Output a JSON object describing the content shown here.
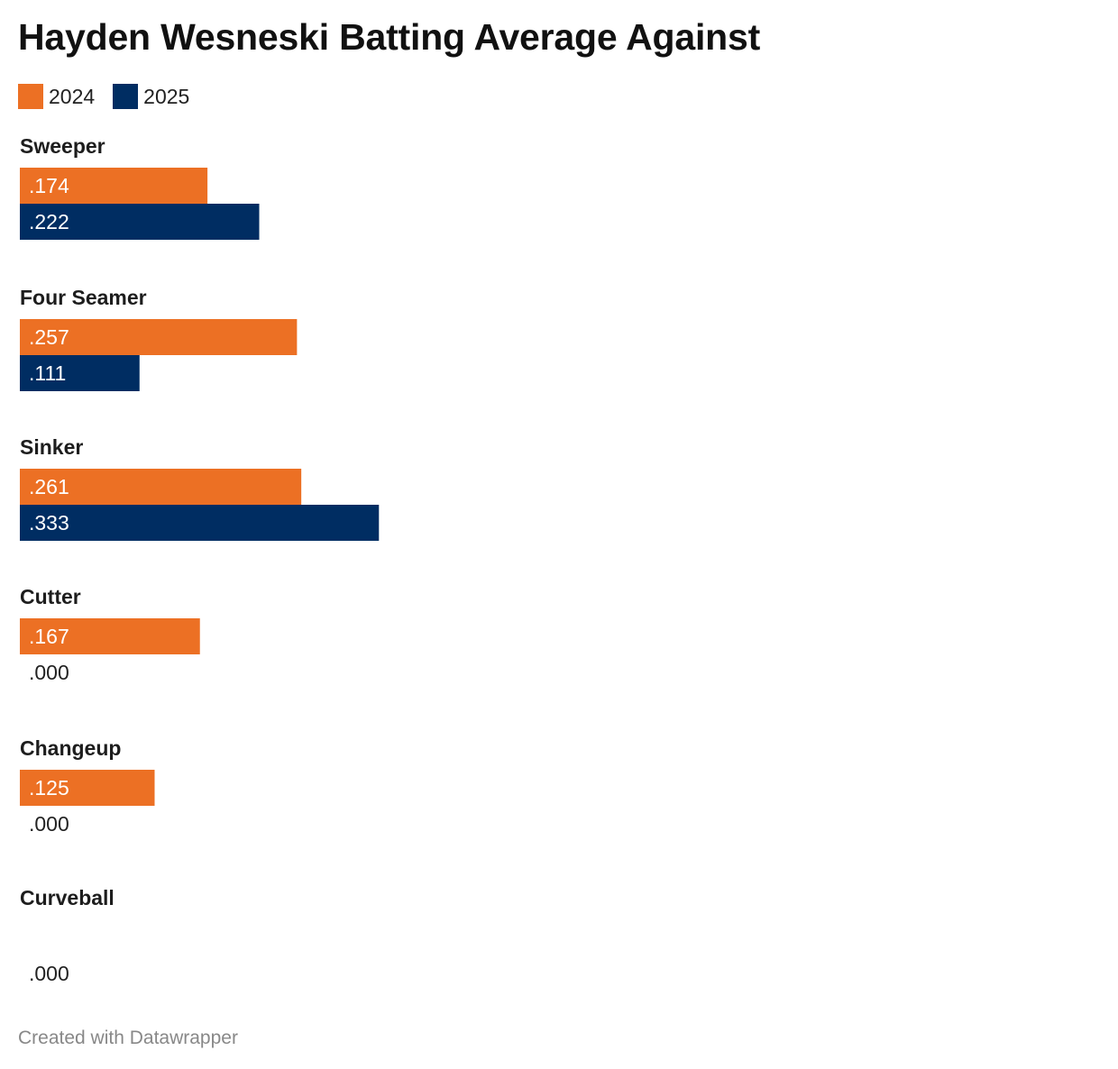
{
  "title": "Hayden Wesneski Batting Average Against",
  "credit": "Created with Datawrapper",
  "colors": {
    "series_2024": "#ec7024",
    "series_2025": "#002d62",
    "label_on_bar": "#ffffff",
    "label_off_bar": "#222222"
  },
  "legend": [
    {
      "name": "2024",
      "color": "#ec7024"
    },
    {
      "name": "2025",
      "color": "#002d62"
    }
  ],
  "chart_data": {
    "type": "bar",
    "orientation": "horizontal",
    "categories": [
      "Sweeper",
      "Four Seamer",
      "Sinker",
      "Cutter",
      "Changeup",
      "Curveball"
    ],
    "series": [
      {
        "name": "2024",
        "values": [
          0.174,
          0.257,
          0.261,
          0.167,
          0.125,
          null
        ],
        "labels": [
          ".174",
          ".257",
          ".261",
          ".167",
          ".125",
          ""
        ]
      },
      {
        "name": "2025",
        "values": [
          0.222,
          0.111,
          0.333,
          0.0,
          0.0,
          0.0
        ],
        "labels": [
          ".222",
          ".111",
          ".333",
          ".000",
          ".000",
          ".000"
        ]
      }
    ],
    "title": "Hayden Wesneski Batting Average Against",
    "xlabel": "",
    "ylabel": "",
    "grid": false,
    "legend_position": "top-left"
  }
}
